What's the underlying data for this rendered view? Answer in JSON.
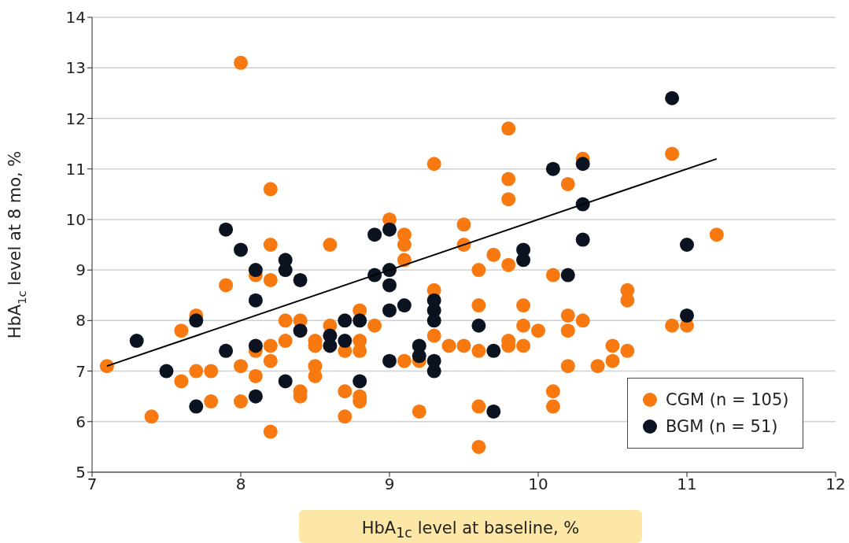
{
  "chart_data": {
    "type": "scatter",
    "xlabel": "HbA$_{1c}$ level at baseline, %",
    "ylabel": "HbA$_{1c}$ level at 8 mo, %",
    "xlim": [
      7,
      12
    ],
    "xticks": [
      7,
      8,
      9,
      10,
      11,
      12
    ],
    "ylim": [
      5,
      14
    ],
    "yticks": [
      5,
      6,
      7,
      8,
      9,
      10,
      11,
      12,
      13,
      14
    ],
    "grid": "y",
    "legend": "bottom right",
    "marker": "circle",
    "series": [
      {
        "name": "CGM (n = 105)",
        "color": "#f7790f",
        "x": [
          7.1,
          7.4,
          7.6,
          7.6,
          7.7,
          7.7,
          7.8,
          7.8,
          7.9,
          8.0,
          8.0,
          8.0,
          8.1,
          8.1,
          8.1,
          8.2,
          8.2,
          8.2,
          8.2,
          8.2,
          8.2,
          8.3,
          8.3,
          8.4,
          8.4,
          8.4,
          8.5,
          8.5,
          8.5,
          8.5,
          8.6,
          8.6,
          8.7,
          8.7,
          8.7,
          8.8,
          8.8,
          8.8,
          8.8,
          8.8,
          8.9,
          9.0,
          9.1,
          9.1,
          9.1,
          9.1,
          9.2,
          9.2,
          9.3,
          9.3,
          9.3,
          9.4,
          9.5,
          9.5,
          9.5,
          9.6,
          9.6,
          9.6,
          9.6,
          9.6,
          9.7,
          9.8,
          9.8,
          9.8,
          9.8,
          9.8,
          9.8,
          9.9,
          9.9,
          9.9,
          10.0,
          10.1,
          10.1,
          10.1,
          10.2,
          10.2,
          10.2,
          10.2,
          10.3,
          10.3,
          10.4,
          10.5,
          10.5,
          10.6,
          10.6,
          10.6,
          10.9,
          10.9,
          11.0,
          11.2
        ],
        "values": [
          7.1,
          6.1,
          6.8,
          7.8,
          8.1,
          7.0,
          7.0,
          6.4,
          8.7,
          13.1,
          7.1,
          6.4,
          8.9,
          7.4,
          6.9,
          10.6,
          9.5,
          8.8,
          7.5,
          7.2,
          5.8,
          8.0,
          7.6,
          8.0,
          6.6,
          6.5,
          7.6,
          7.5,
          7.1,
          6.9,
          9.5,
          7.9,
          7.4,
          6.6,
          6.1,
          8.2,
          7.6,
          7.4,
          6.5,
          6.4,
          7.9,
          10.0,
          9.7,
          9.5,
          9.2,
          7.2,
          7.2,
          6.2,
          11.1,
          8.6,
          7.7,
          7.5,
          9.9,
          9.5,
          7.5,
          9.0,
          8.3,
          7.4,
          6.3,
          5.5,
          9.3,
          11.8,
          10.8,
          10.4,
          9.1,
          7.6,
          7.5,
          8.3,
          7.9,
          7.5,
          7.8,
          8.9,
          6.6,
          6.3,
          10.7,
          8.1,
          7.8,
          7.1,
          11.2,
          8.0,
          7.1,
          7.5,
          7.2,
          8.6,
          8.4,
          7.4,
          11.3,
          7.9,
          7.9,
          9.7
        ]
      },
      {
        "name": "BGM (n = 51)",
        "color": "#0b1220",
        "x": [
          7.3,
          7.5,
          7.7,
          7.7,
          7.9,
          7.9,
          8.0,
          8.1,
          8.1,
          8.1,
          8.1,
          8.3,
          8.3,
          8.3,
          8.4,
          8.4,
          8.6,
          8.6,
          8.7,
          8.7,
          8.8,
          8.8,
          8.9,
          8.9,
          9.0,
          9.0,
          9.0,
          9.0,
          9.0,
          9.1,
          9.2,
          9.2,
          9.3,
          9.3,
          9.3,
          9.3,
          9.3,
          9.6,
          9.7,
          9.7,
          9.9,
          9.9,
          10.1,
          10.2,
          10.3,
          10.3,
          10.3,
          10.9,
          11.0,
          11.0
        ],
        "values": [
          7.6,
          7.0,
          8.0,
          6.3,
          9.8,
          7.4,
          9.4,
          9.0,
          8.4,
          7.5,
          6.5,
          9.2,
          9.0,
          6.8,
          8.8,
          7.8,
          7.7,
          7.5,
          8.0,
          7.6,
          8.0,
          6.8,
          9.7,
          8.9,
          9.8,
          9.0,
          8.7,
          8.2,
          7.2,
          8.3,
          7.5,
          7.3,
          8.4,
          8.2,
          8.0,
          7.2,
          7.0,
          7.9,
          7.4,
          6.2,
          9.4,
          9.2,
          11.0,
          8.9,
          11.1,
          10.3,
          9.6,
          12.4,
          9.5,
          8.1
        ]
      },
      {
        "type": "line",
        "marker": "none",
        "color": "#000000",
        "x": [
          7.1,
          11.2
        ],
        "values": [
          7.1,
          11.2
        ]
      }
    ]
  }
}
